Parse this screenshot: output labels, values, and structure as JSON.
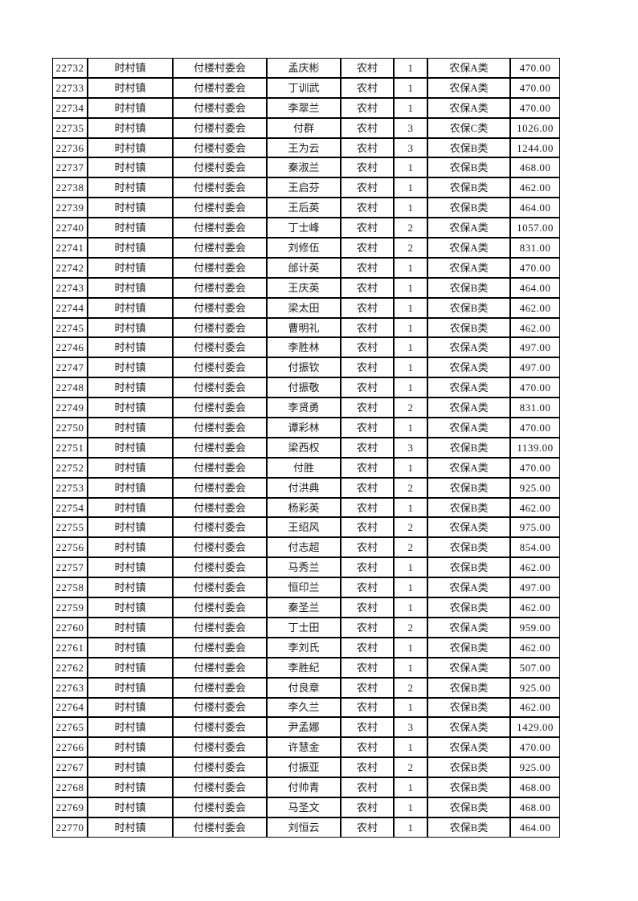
{
  "page": {
    "background_color": "#ffffff",
    "grid_color": "#000000",
    "text_color": "#1c1c1c"
  },
  "table": {
    "rows": [
      [
        "22732",
        "时村镇",
        "付楼村委会",
        "孟庆彬",
        "农村",
        "1",
        "农保A类",
        "470.00"
      ],
      [
        "22733",
        "时村镇",
        "付楼村委会",
        "丁训武",
        "农村",
        "1",
        "农保A类",
        "470.00"
      ],
      [
        "22734",
        "时村镇",
        "付楼村委会",
        "李翠兰",
        "农村",
        "1",
        "农保A类",
        "470.00"
      ],
      [
        "22735",
        "时村镇",
        "付楼村委会",
        "付群",
        "农村",
        "3",
        "农保C类",
        "1026.00"
      ],
      [
        "22736",
        "时村镇",
        "付楼村委会",
        "王为云",
        "农村",
        "3",
        "农保B类",
        "1244.00"
      ],
      [
        "22737",
        "时村镇",
        "付楼村委会",
        "秦淑兰",
        "农村",
        "1",
        "农保B类",
        "468.00"
      ],
      [
        "22738",
        "时村镇",
        "付楼村委会",
        "王启芬",
        "农村",
        "1",
        "农保B类",
        "462.00"
      ],
      [
        "22739",
        "时村镇",
        "付楼村委会",
        "王后英",
        "农村",
        "1",
        "农保B类",
        "464.00"
      ],
      [
        "22740",
        "时村镇",
        "付楼村委会",
        "丁士峰",
        "农村",
        "2",
        "农保A类",
        "1057.00"
      ],
      [
        "22741",
        "时村镇",
        "付楼村委会",
        "刘修伍",
        "农村",
        "2",
        "农保A类",
        "831.00"
      ],
      [
        "22742",
        "时村镇",
        "付楼村委会",
        "邰计英",
        "农村",
        "1",
        "农保A类",
        "470.00"
      ],
      [
        "22743",
        "时村镇",
        "付楼村委会",
        "王庆英",
        "农村",
        "1",
        "农保B类",
        "464.00"
      ],
      [
        "22744",
        "时村镇",
        "付楼村委会",
        "梁太田",
        "农村",
        "1",
        "农保B类",
        "462.00"
      ],
      [
        "22745",
        "时村镇",
        "付楼村委会",
        "曹明礼",
        "农村",
        "1",
        "农保B类",
        "462.00"
      ],
      [
        "22746",
        "时村镇",
        "付楼村委会",
        "李胜林",
        "农村",
        "1",
        "农保A类",
        "497.00"
      ],
      [
        "22747",
        "时村镇",
        "付楼村委会",
        "付振钦",
        "农村",
        "1",
        "农保A类",
        "497.00"
      ],
      [
        "22748",
        "时村镇",
        "付楼村委会",
        "付振敬",
        "农村",
        "1",
        "农保A类",
        "470.00"
      ],
      [
        "22749",
        "时村镇",
        "付楼村委会",
        "李贤勇",
        "农村",
        "2",
        "农保A类",
        "831.00"
      ],
      [
        "22750",
        "时村镇",
        "付楼村委会",
        "谭彩林",
        "农村",
        "1",
        "农保A类",
        "470.00"
      ],
      [
        "22751",
        "时村镇",
        "付楼村委会",
        "梁西权",
        "农村",
        "3",
        "农保B类",
        "1139.00"
      ],
      [
        "22752",
        "时村镇",
        "付楼村委会",
        "付胜",
        "农村",
        "1",
        "农保A类",
        "470.00"
      ],
      [
        "22753",
        "时村镇",
        "付楼村委会",
        "付洪典",
        "农村",
        "2",
        "农保B类",
        "925.00"
      ],
      [
        "22754",
        "时村镇",
        "付楼村委会",
        "杨彩英",
        "农村",
        "1",
        "农保B类",
        "462.00"
      ],
      [
        "22755",
        "时村镇",
        "付楼村委会",
        "王绍风",
        "农村",
        "2",
        "农保A类",
        "975.00"
      ],
      [
        "22756",
        "时村镇",
        "付楼村委会",
        "付志超",
        "农村",
        "2",
        "农保B类",
        "854.00"
      ],
      [
        "22757",
        "时村镇",
        "付楼村委会",
        "马秀兰",
        "农村",
        "1",
        "农保B类",
        "462.00"
      ],
      [
        "22758",
        "时村镇",
        "付楼村委会",
        "恒印兰",
        "农村",
        "1",
        "农保A类",
        "497.00"
      ],
      [
        "22759",
        "时村镇",
        "付楼村委会",
        "秦圣兰",
        "农村",
        "1",
        "农保B类",
        "462.00"
      ],
      [
        "22760",
        "时村镇",
        "付楼村委会",
        "丁士田",
        "农村",
        "2",
        "农保A类",
        "959.00"
      ],
      [
        "22761",
        "时村镇",
        "付楼村委会",
        "李刘氏",
        "农村",
        "1",
        "农保B类",
        "462.00"
      ],
      [
        "22762",
        "时村镇",
        "付楼村委会",
        "李胜纪",
        "农村",
        "1",
        "农保A类",
        "507.00"
      ],
      [
        "22763",
        "时村镇",
        "付楼村委会",
        "付良章",
        "农村",
        "2",
        "农保B类",
        "925.00"
      ],
      [
        "22764",
        "时村镇",
        "付楼村委会",
        "李久兰",
        "农村",
        "1",
        "农保B类",
        "462.00"
      ],
      [
        "22765",
        "时村镇",
        "付楼村委会",
        "尹孟娜",
        "农村",
        "3",
        "农保A类",
        "1429.00"
      ],
      [
        "22766",
        "时村镇",
        "付楼村委会",
        "许慧金",
        "农村",
        "1",
        "农保A类",
        "470.00"
      ],
      [
        "22767",
        "时村镇",
        "付楼村委会",
        "付振亚",
        "农村",
        "2",
        "农保B类",
        "925.00"
      ],
      [
        "22768",
        "时村镇",
        "付楼村委会",
        "付帅青",
        "农村",
        "1",
        "农保B类",
        "468.00"
      ],
      [
        "22769",
        "时村镇",
        "付楼村委会",
        "马圣文",
        "农村",
        "1",
        "农保B类",
        "468.00"
      ],
      [
        "22770",
        "时村镇",
        "付楼村委会",
        "刘恒云",
        "农村",
        "1",
        "农保B类",
        "464.00"
      ]
    ]
  }
}
